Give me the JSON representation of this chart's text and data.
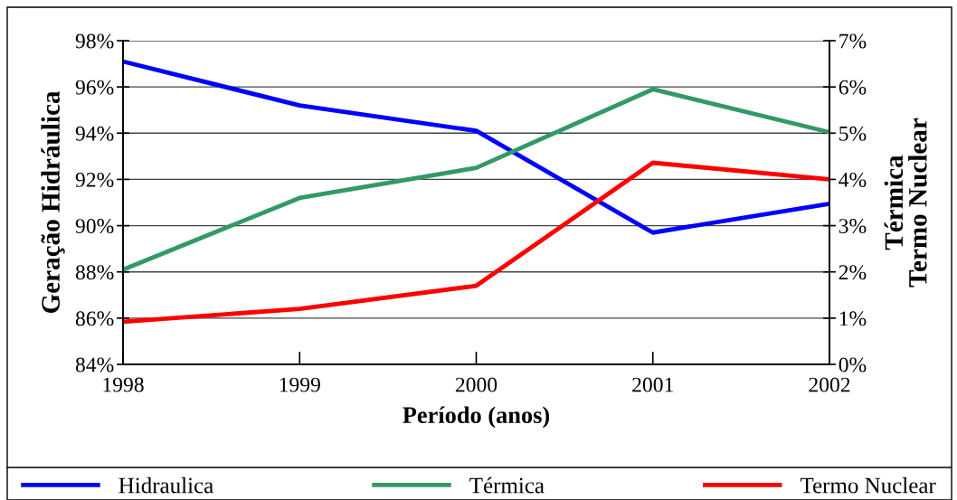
{
  "chart_data": {
    "type": "line",
    "categories": [
      "1998",
      "1999",
      "2000",
      "2001",
      "2002"
    ],
    "xlabel": "Período (anos)",
    "ylabel": "Geração Hidráulica",
    "y2label": "Térmica\nTermo Nuclear",
    "series": [
      {
        "name": "Hidraulica",
        "color": "#0000ff",
        "axis": "y",
        "values": [
          97.1,
          95.2,
          94.1,
          89.7,
          90.95
        ]
      },
      {
        "name": "Térmica",
        "color": "#339966",
        "axis": "y2",
        "values": [
          2.05,
          3.6,
          4.25,
          5.95,
          5.02
        ]
      },
      {
        "name": "Termo Nuclear",
        "color": "#ff0000",
        "axis": "y2",
        "values": [
          0.92,
          1.2,
          1.7,
          4.36,
          4.0
        ]
      }
    ],
    "ylim": [
      84,
      98
    ],
    "yticks": [
      {
        "value": 84,
        "label": "84%"
      },
      {
        "value": 86,
        "label": "86%"
      },
      {
        "value": 88,
        "label": "88%"
      },
      {
        "value": 90,
        "label": "90%"
      },
      {
        "value": 92,
        "label": "92%"
      },
      {
        "value": 94,
        "label": "94%"
      },
      {
        "value": 96,
        "label": "96%"
      },
      {
        "value": 98,
        "label": "98%"
      }
    ],
    "y2lim": [
      0,
      7
    ],
    "y2ticks": [
      {
        "value": 0,
        "label": "0%"
      },
      {
        "value": 1,
        "label": "1%"
      },
      {
        "value": 2,
        "label": "2%"
      },
      {
        "value": 3,
        "label": "3%"
      },
      {
        "value": 4,
        "label": "4%"
      },
      {
        "value": 5,
        "label": "5%"
      },
      {
        "value": 6,
        "label": "6%"
      },
      {
        "value": 7,
        "label": "7%"
      }
    ],
    "grid": "y",
    "legend": "bottom",
    "marker": "none",
    "line_style": "solid"
  }
}
